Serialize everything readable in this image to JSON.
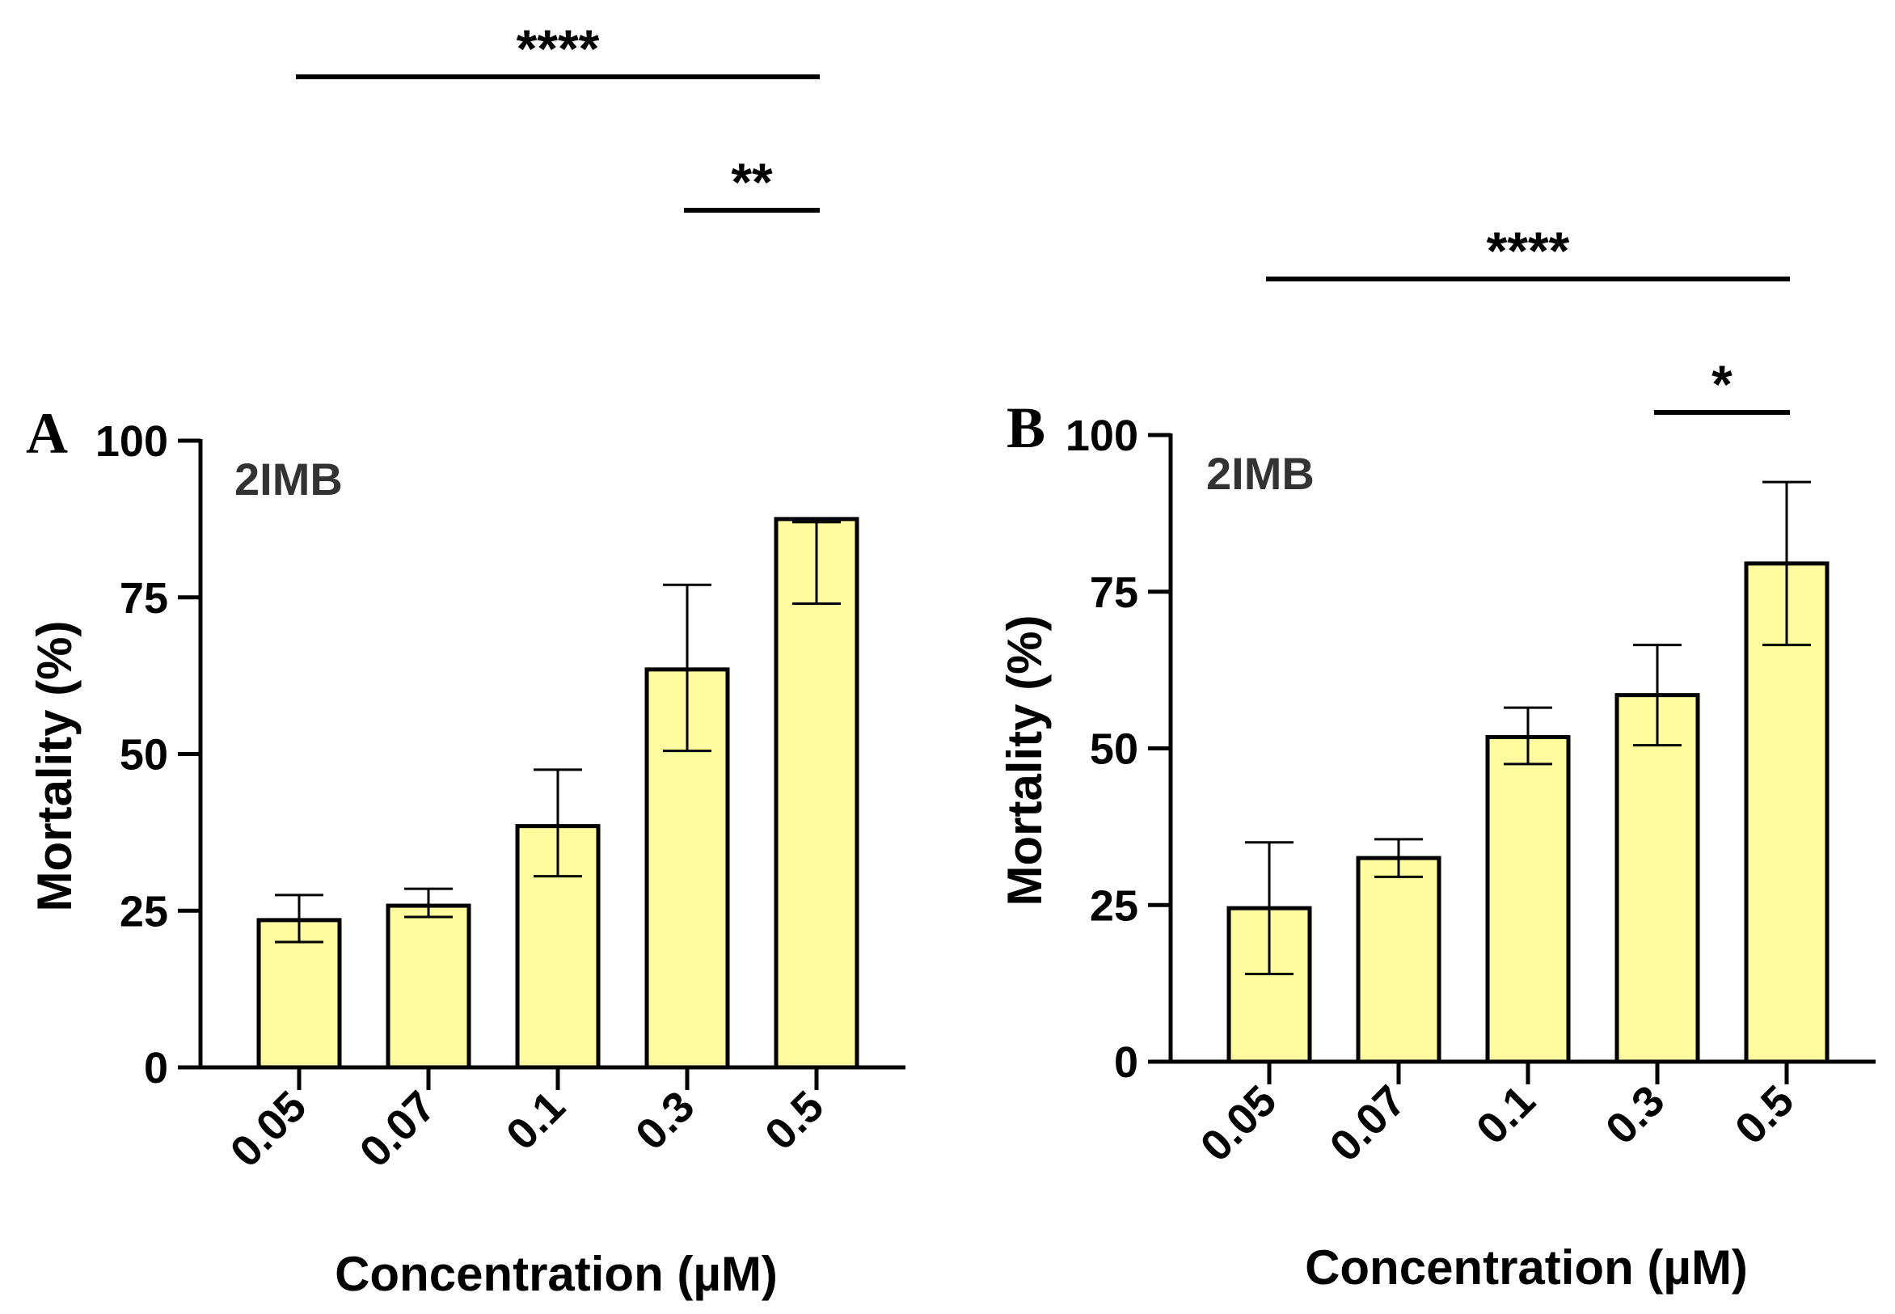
{
  "colors": {
    "bar_fill": "#FFFB9E",
    "stroke": "#000000",
    "inset_text": "#333333"
  },
  "chart_data": [
    {
      "type": "bar",
      "panel": "A",
      "inset_label": "2IMB",
      "xlabel": "Concentration (µM)",
      "ylabel": "Mortality (%)",
      "ylim": [
        0,
        100
      ],
      "yticks": [
        0,
        25,
        50,
        75,
        100
      ],
      "categories": [
        "0.05",
        "0.07",
        "0.1",
        "0.3",
        "0.5"
      ],
      "values": [
        23.5,
        25.8,
        38.5,
        63.5,
        87.5
      ],
      "errors_lower": [
        20.0,
        24.0,
        30.5,
        50.5,
        74.0
      ],
      "errors_upper": [
        27.5,
        28.5,
        47.5,
        77.0,
        87.0
      ],
      "significance": [
        {
          "from": "0.05",
          "to": "0.5",
          "label": "****",
          "level": 2
        },
        {
          "from": "0.3",
          "to": "0.5",
          "label": "**",
          "level": 1
        }
      ]
    },
    {
      "type": "bar",
      "panel": "B",
      "inset_label": "2IMB",
      "xlabel": "Concentration (µM)",
      "ylabel": "Mortality (%)",
      "ylim": [
        0,
        100
      ],
      "yticks": [
        0,
        25,
        50,
        75,
        100
      ],
      "categories": [
        "0.05",
        "0.07",
        "0.1",
        "0.3",
        "0.5"
      ],
      "values": [
        24.5,
        32.5,
        51.8,
        58.5,
        79.5
      ],
      "errors_lower": [
        14.0,
        29.5,
        47.5,
        50.5,
        66.5
      ],
      "errors_upper": [
        35.0,
        35.5,
        56.5,
        66.5,
        92.5
      ],
      "significance": [
        {
          "from": "0.05",
          "to": "0.5",
          "label": "****",
          "level": 2
        },
        {
          "from": "0.3",
          "to": "0.5",
          "label": "*",
          "level": 1
        }
      ]
    }
  ]
}
